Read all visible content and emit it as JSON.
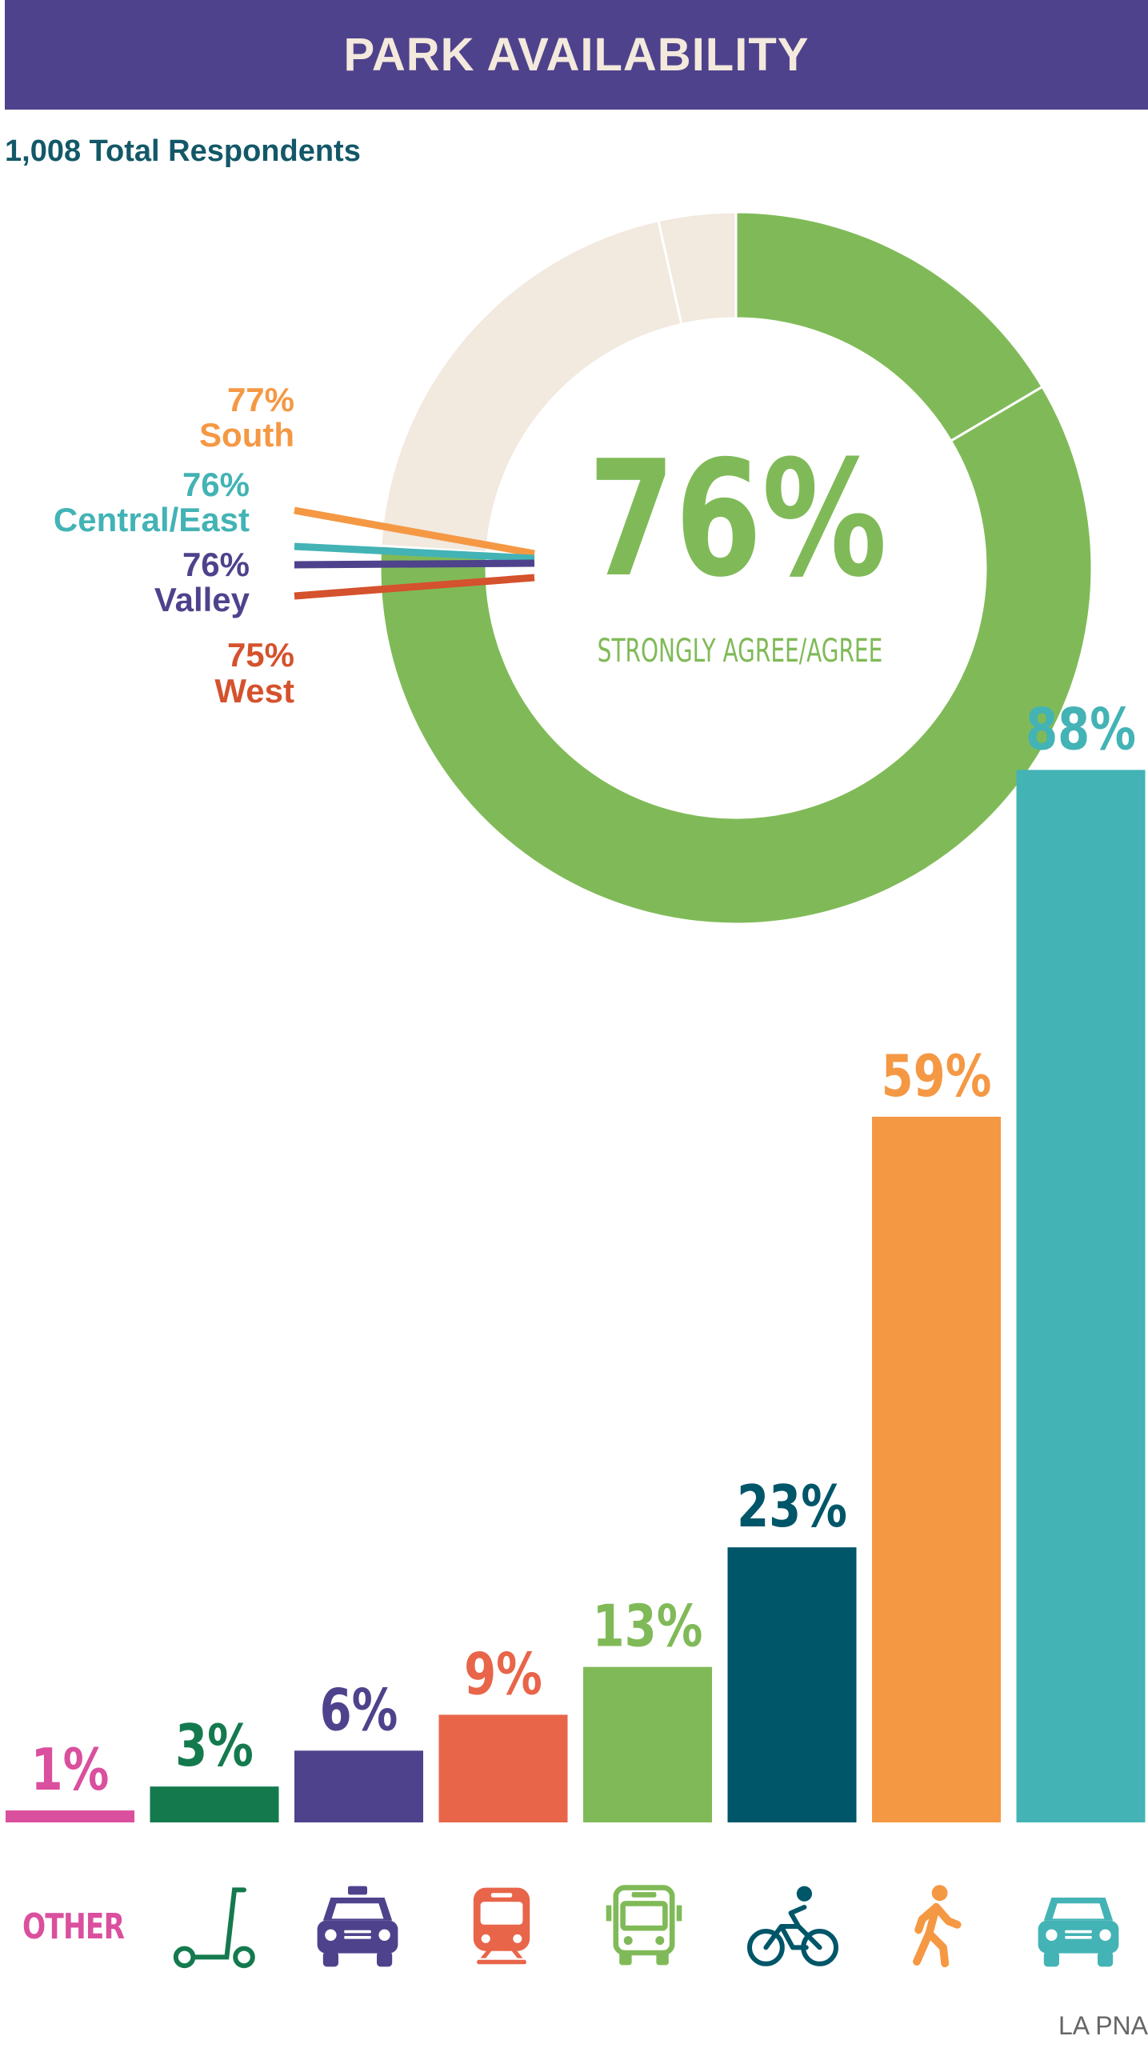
{
  "header": {
    "title": "PARK AVAILABILITY"
  },
  "respondents_label": "1,008 Total Respondents",
  "credit": "LA PNA",
  "colors": {
    "green": "#80ba58",
    "beige": "#f2e9df",
    "orange": "#f59844",
    "teal": "#43b3b5",
    "purple": "#4f428c",
    "red": "#d4522d",
    "coral": "#e8654a",
    "dark_teal": "#005669",
    "dark_green": "#147a4e",
    "pink": "#da4f9e"
  },
  "chart_data": [
    {
      "type": "pie",
      "variant": "donut",
      "center_value": "76%",
      "center_label": "STRONGLY AGREE/AGREE",
      "slices": [
        {
          "value": 16.5,
          "color": "#80ba58"
        },
        {
          "value": 59.5,
          "color": "#80ba58"
        },
        {
          "value": 20.5,
          "color": "#f2e9df"
        },
        {
          "value": 3.5,
          "color": "#f2e9df"
        }
      ],
      "regions": [
        {
          "percent": "77%",
          "name": "South",
          "color": "#f59844"
        },
        {
          "percent": "76%",
          "name": "Central/East",
          "color": "#43b3b5"
        },
        {
          "percent": "76%",
          "name": "Valley",
          "color": "#4f428c"
        },
        {
          "percent": "75%",
          "name": "West",
          "color": "#d4522d"
        }
      ]
    },
    {
      "type": "bar",
      "categories": [
        "OTHER",
        "scooter",
        "taxi",
        "train",
        "bus",
        "bicycle",
        "walking",
        "car"
      ],
      "values": [
        1,
        3,
        6,
        9,
        13,
        23,
        59,
        88
      ],
      "labels": [
        "1%",
        "3%",
        "6%",
        "9%",
        "13%",
        "23%",
        "59%",
        "88%"
      ],
      "colors": [
        "#da4f9e",
        "#147a4e",
        "#4f428c",
        "#e8654a",
        "#80ba58",
        "#005669",
        "#f59844",
        "#43b3b5"
      ],
      "icons": [
        "other-label",
        "scooter-icon",
        "taxi-icon",
        "train-icon",
        "bus-icon",
        "bicycle-icon",
        "walking-icon",
        "car-icon"
      ],
      "ylim": [
        0,
        100
      ]
    }
  ]
}
